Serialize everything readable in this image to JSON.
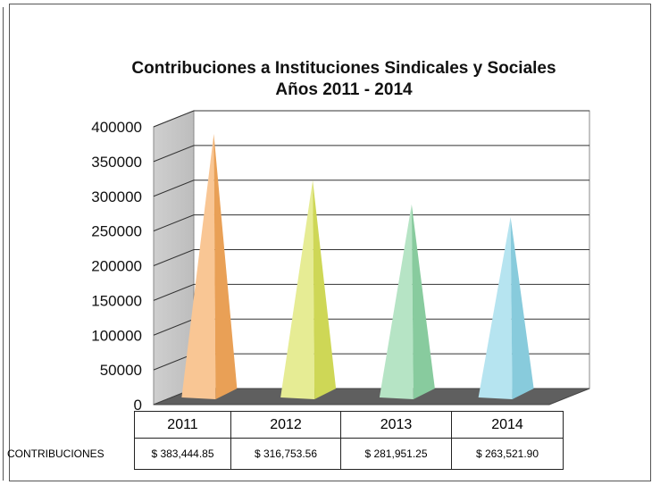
{
  "chart_data": {
    "type": "bar",
    "title": "Contribuciones a Instituciones Sindicales y Sociales",
    "subtitle": "Años 2011 - 2014",
    "categories": [
      "2011",
      "2012",
      "2013",
      "2014"
    ],
    "series": [
      {
        "name": "CONTRIBUCIONES",
        "values": [
          383444.85,
          316753.56,
          281951.25,
          263521.9
        ]
      }
    ],
    "value_labels": [
      "$ 383,444.85",
      "$ 316,753.56",
      "$ 281,951.25",
      "$ 263,521.90"
    ],
    "ylim": [
      0,
      400000
    ],
    "yticks": [
      "400000",
      "350000",
      "300000",
      "250000",
      "200000",
      "150000",
      "100000",
      "50000",
      "0"
    ],
    "grid": true,
    "colors": [
      "#f5a85a",
      "#d9e25a",
      "#8fd6a6",
      "#8fd6e8"
    ]
  }
}
